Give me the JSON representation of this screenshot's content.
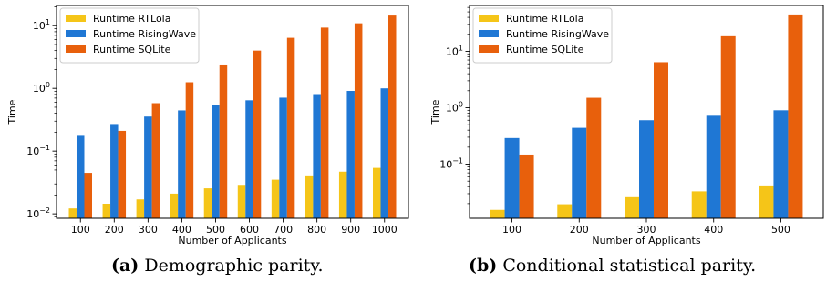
{
  "chart_data": [
    {
      "type": "bar",
      "title": "",
      "xlabel": "Number of Applicants",
      "ylabel": "Time",
      "yscale": "log",
      "ylim": [
        0.0085,
        21
      ],
      "yticks": [
        {
          "value": 0.01,
          "base": "10",
          "exp": "−2"
        },
        {
          "value": 0.1,
          "base": "10",
          "exp": "−1"
        },
        {
          "value": 1,
          "base": "10",
          "exp": "0"
        },
        {
          "value": 10,
          "base": "10",
          "exp": "1"
        }
      ],
      "categories": [
        "100",
        "200",
        "300",
        "400",
        "500",
        "600",
        "700",
        "800",
        "900",
        "1000"
      ],
      "legend_position": "upper-left",
      "series": [
        {
          "name": "Runtime RTLola",
          "color": "#f5c518",
          "values": [
            0.0122,
            0.0145,
            0.017,
            0.021,
            0.0255,
            0.029,
            0.035,
            0.041,
            0.047,
            0.054
          ]
        },
        {
          "name": "Runtime RisingWave",
          "color": "#1f77d4",
          "values": [
            0.175,
            0.27,
            0.355,
            0.445,
            0.54,
            0.645,
            0.71,
            0.81,
            0.91,
            1.0
          ]
        },
        {
          "name": "Runtime SQLite",
          "color": "#e8600c",
          "values": [
            0.045,
            0.21,
            0.58,
            1.25,
            2.4,
            4.0,
            6.4,
            9.3,
            10.9,
            14.5
          ]
        }
      ]
    },
    {
      "type": "bar",
      "title": "",
      "xlabel": "Number of Applicants",
      "ylabel": "Time",
      "yscale": "log",
      "ylim": [
        0.011,
        65
      ],
      "yticks": [
        {
          "value": 0.1,
          "base": "10",
          "exp": "−1"
        },
        {
          "value": 1,
          "base": "10",
          "exp": "0"
        },
        {
          "value": 10,
          "base": "10",
          "exp": "1"
        }
      ],
      "categories": [
        "100",
        "200",
        "300",
        "400",
        "500"
      ],
      "legend_position": "upper-left",
      "series": [
        {
          "name": "Runtime RTLola",
          "color": "#f5c518",
          "values": [
            0.0155,
            0.0195,
            0.026,
            0.033,
            0.042
          ]
        },
        {
          "name": "Runtime RisingWave",
          "color": "#1f77d4",
          "values": [
            0.29,
            0.44,
            0.6,
            0.72,
            0.9
          ]
        },
        {
          "name": "Runtime SQLite",
          "color": "#e8600c",
          "values": [
            0.148,
            1.5,
            6.4,
            18.5,
            45
          ]
        }
      ]
    }
  ],
  "captions": [
    {
      "label": "(a)",
      "text": "Demographic parity."
    },
    {
      "label": "(b)",
      "text": "Conditional statistical parity."
    }
  ]
}
